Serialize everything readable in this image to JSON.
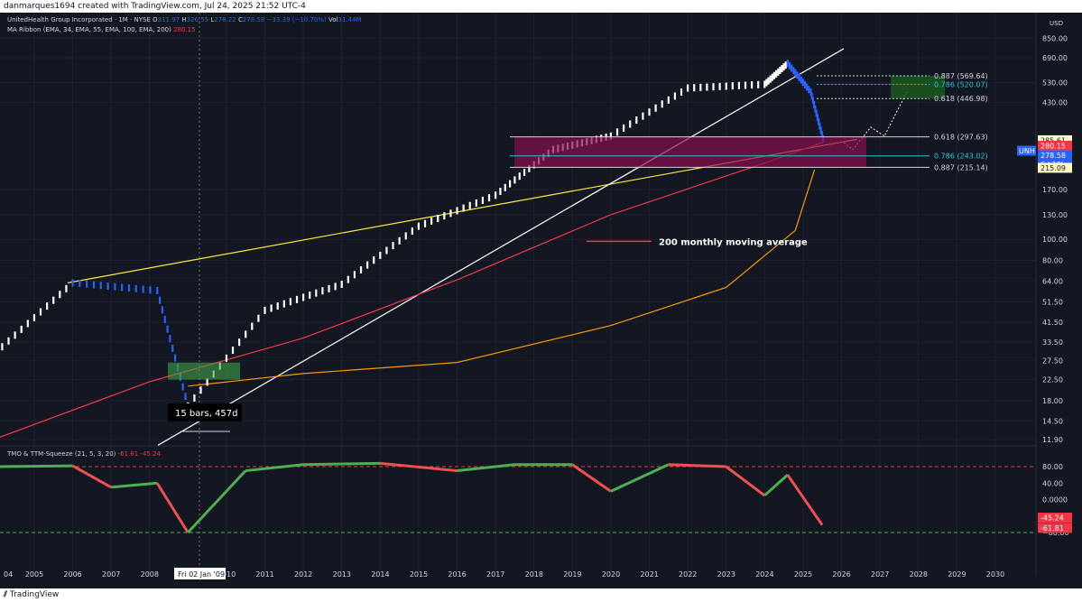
{
  "header": {
    "text": "danmarques1694 created with TradingView.com, Jul 24, 2025 21:52 UTC-4"
  },
  "footer": {
    "brand": "TradingView"
  },
  "legend": {
    "symbol": "UnitedHealth Group Incorporated · 1M · NYSE",
    "o_label": "O",
    "o": "311.97",
    "h_label": "H",
    "h": "326.55",
    "l_label": "L",
    "l": "278.22",
    "c_label": "C",
    "c": "278.58",
    "chg": "−33.39 (−10.70%)",
    "vol_label": "Vol",
    "vol": "31.44M",
    "ribbon_label": "MA Ribbon (EMA, 34, EMA, 55, EMA, 100, EMA, 200)",
    "ribbon_val": "280.15",
    "osc_label": "TMO & TTM-Squeeze (21, 5, 3, 20)",
    "osc_v1": "-61.81",
    "osc_v2": "-45.24"
  },
  "price_axis": {
    "currency": "USD",
    "ticks": [
      "850.00",
      "690.00",
      "530.00",
      "430.00",
      "170.00",
      "130.00",
      "100.00",
      "80.00",
      "64.00",
      "51.50",
      "41.50",
      "33.50",
      "27.50",
      "22.50",
      "18.00",
      "14.50",
      "11.90"
    ]
  },
  "osc_axis": {
    "ticks": [
      "80.00",
      "40.00",
      "0.0000",
      "−80.00"
    ]
  },
  "price_tags": {
    "p285": "285.61",
    "p280": "280.15",
    "sym": "UNH",
    "last": "278.58",
    "countdown": "6d 19h",
    "p215": "215.09",
    "o45": "-45.24",
    "o61": "-61.81"
  },
  "fib_labels": {
    "f887u": "0.887 (569.64)",
    "f786u": "0.786 (520.07)",
    "f618u": "0.618 (446.98)",
    "f618l": "0.618 (297.63)",
    "f786l": "0.786 (243.02)",
    "f887l": "0.887 (215.14)"
  },
  "annotations": {
    "ma200": "200 monthly moving average",
    "bars": "15 bars, 457d"
  },
  "time_axis": {
    "ticks": [
      "04",
      "2005",
      "2006",
      "2007",
      "2008",
      "2010",
      "2011",
      "2012",
      "2013",
      "2014",
      "2015",
      "2016",
      "2017",
      "2018",
      "2019",
      "2020",
      "2021",
      "2022",
      "2023",
      "2024",
      "2025",
      "2026",
      "2027",
      "2028",
      "2029",
      "2030"
    ],
    "cursor": "Fri 02 Jan '09"
  },
  "colors": {
    "background": "#131722",
    "up": "#ffffff",
    "down": "#2962ff",
    "ema_red": "#f23645",
    "ema_orange": "#ff9800",
    "trend_yellow": "#ffeb3b",
    "osc_green": "#4caf50",
    "osc_red": "#f0504f"
  },
  "chart_data": {
    "type": "candlestick",
    "title": "UnitedHealth Group Incorporated · 1M · NYSE",
    "ylabel": "USD",
    "y_scale": "log",
    "series": [
      {
        "name": "UNH",
        "x": [
          2004,
          2006,
          2008.2,
          2009,
          2011,
          2013,
          2015,
          2017,
          2018.5,
          2020,
          2022,
          2024,
          2024.6,
          2025.2,
          2025.55
        ],
        "values": [
          30,
          63,
          58,
          17,
          47,
          62,
          115,
          160,
          260,
          300,
          500,
          520,
          650,
          480,
          278.58
        ]
      },
      {
        "name": "200 monthly moving average",
        "x": [
          2004,
          2008,
          2012,
          2016,
          2020,
          2024,
          2025.5
        ],
        "values": [
          12,
          22,
          35,
          65,
          130,
          225,
          280
        ]
      },
      {
        "name": "EMA",
        "x": [
          2009,
          2012,
          2016,
          2020,
          2023,
          2024.8,
          2025.3
        ],
        "values": [
          21,
          24,
          27,
          40,
          60,
          110,
          210
        ]
      }
    ],
    "fib_levels": [
      {
        "ratio": 0.887,
        "value": 569.64
      },
      {
        "ratio": 0.786,
        "value": 520.07
      },
      {
        "ratio": 0.618,
        "value": 446.98
      },
      {
        "ratio": 0.618,
        "value": 297.63
      },
      {
        "ratio": 0.786,
        "value": 243.02
      },
      {
        "ratio": 0.887,
        "value": 215.14
      }
    ],
    "oscillator": {
      "name": "TMO & TTM-Squeeze (21, 5, 3, 20)",
      "ylim": [
        -100,
        100
      ],
      "levels": [
        80,
        -80
      ],
      "x": [
        2004,
        2006,
        2007,
        2008.2,
        2009,
        2010.5,
        2012,
        2014,
        2016,
        2017.5,
        2019,
        2020,
        2021.5,
        2023,
        2024,
        2024.6,
        2025.5
      ],
      "values": [
        80,
        82,
        30,
        40,
        -80,
        70,
        85,
        88,
        70,
        85,
        85,
        20,
        85,
        80,
        10,
        60,
        -61.81
      ]
    },
    "grid": true
  }
}
